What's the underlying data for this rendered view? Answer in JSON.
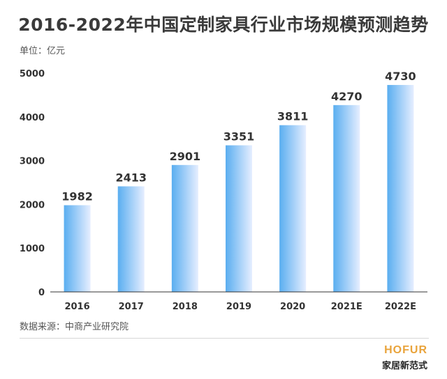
{
  "chart_data": {
    "type": "bar",
    "title": "2016-2022年中国定制家具行业市场规模预测趋势",
    "unit_label": "单位：亿元",
    "categories": [
      "2016",
      "2017",
      "2018",
      "2019",
      "2020",
      "2021E",
      "2022E"
    ],
    "values": [
      1982,
      2413,
      2901,
      3351,
      3811,
      4270,
      4730
    ],
    "ylim": [
      0,
      5000
    ],
    "yticks": [
      0,
      1000,
      2000,
      3000,
      4000,
      5000
    ],
    "grid": false,
    "legend": "none",
    "bar_color_from": "#5aaef0",
    "bar_color_to": "#e6eeff"
  },
  "source": "数据来源：中商产业研究院",
  "brand": {
    "logo": "HOFUR",
    "name": "家居新范式",
    "logo_color": "#e9a33a"
  }
}
